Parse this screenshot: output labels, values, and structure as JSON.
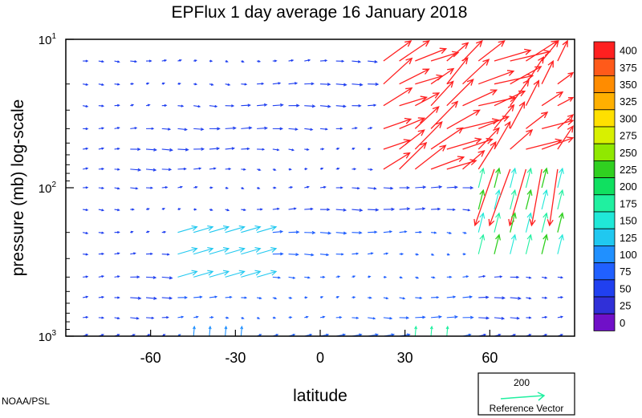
{
  "chart_data": {
    "type": "vector-field",
    "title": "EPFlux  1 day average  16 January   2018",
    "xlabel": "latitude",
    "ylabel": "pressure (mb)  log-scale",
    "xlim": [
      -90,
      90
    ],
    "ylim": [
      1000,
      10
    ],
    "yscale": "log",
    "x_ticks": [
      {
        "value": -60,
        "label": "-60"
      },
      {
        "value": -30,
        "label": "-30"
      },
      {
        "value": 0,
        "label": "0"
      },
      {
        "value": 30,
        "label": "30"
      },
      {
        "value": 60,
        "label": "60"
      }
    ],
    "y_ticks": [
      {
        "value": 10,
        "base": "10",
        "exp": "1"
      },
      {
        "value": 100,
        "base": "10",
        "exp": "2"
      },
      {
        "value": 1000,
        "base": "10",
        "exp": "3"
      }
    ],
    "colorbar": {
      "levels": [
        "400",
        "375",
        "350",
        "325",
        "300",
        "275",
        "250",
        "225",
        "200",
        "175",
        "150",
        "125",
        "100",
        "75",
        "50",
        "25",
        "0"
      ],
      "colors": [
        "#ff2020",
        "#ff5a1a",
        "#ff8c00",
        "#ffb000",
        "#ffe000",
        "#d8f000",
        "#90e800",
        "#30d020",
        "#10e060",
        "#20f0a0",
        "#20e8d8",
        "#20c8f0",
        "#2090ff",
        "#2060ff",
        "#2040f0",
        "#3030d8",
        "#7010c8"
      ]
    },
    "reference_vector": {
      "value": "200",
      "label": "Reference Vector",
      "color": "#20f0a0"
    },
    "credit": "NOAA/PSL"
  }
}
